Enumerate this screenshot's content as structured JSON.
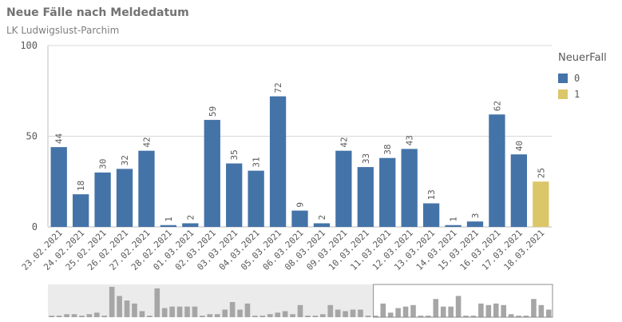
{
  "header": {
    "title": "Neue Fälle nach Meldedatum",
    "subtitle": "LK Ludwigslust-Parchim"
  },
  "legend": {
    "title": "NeuerFall",
    "items": [
      {
        "label": "0",
        "color": "#4473a8"
      },
      {
        "label": "1",
        "color": "#dbc769"
      }
    ]
  },
  "chart_data": {
    "type": "bar",
    "title": "Neue Fälle nach Meldedatum",
    "subtitle": "LK Ludwigslust-Parchim",
    "xlabel": "",
    "ylabel": "",
    "ylim": [
      0,
      100
    ],
    "yticks": [
      0,
      50,
      100
    ],
    "grid": true,
    "legend_position": "right",
    "categories": [
      "23.02.2021",
      "24.02.2021",
      "25.02.2021",
      "26.02.2021",
      "27.02.2021",
      "28.02.2021",
      "01.03.2021",
      "02.03.2021",
      "03.03.2021",
      "04.03.2021",
      "05.03.2021",
      "06.03.2021",
      "08.03.2021",
      "09.03.2021",
      "10.03.2021",
      "11.03.2021",
      "12.03.2021",
      "13.03.2021",
      "14.03.2021",
      "15.03.2021",
      "16.03.2021",
      "17.03.2021",
      "18.03.2021"
    ],
    "values": [
      44,
      18,
      30,
      32,
      42,
      1,
      2,
      59,
      35,
      31,
      72,
      9,
      2,
      42,
      33,
      38,
      43,
      13,
      1,
      3,
      62,
      40,
      25
    ],
    "neuer_fall": [
      0,
      0,
      0,
      0,
      0,
      0,
      0,
      0,
      0,
      0,
      0,
      0,
      0,
      0,
      0,
      0,
      0,
      0,
      0,
      0,
      0,
      0,
      1
    ],
    "series_colors": {
      "0": "#4473a8",
      "1": "#dbc769"
    }
  },
  "mini_chart": {
    "values": [
      1,
      1,
      2,
      2,
      1,
      2,
      3,
      1,
      20,
      14,
      11,
      9,
      4,
      1,
      19,
      6,
      7,
      7,
      7,
      7,
      1,
      2,
      2,
      5,
      10,
      5,
      9,
      1,
      1,
      2,
      3,
      4,
      2,
      8,
      1,
      1,
      2,
      8,
      5,
      4,
      5,
      5,
      1,
      1,
      9,
      3,
      6,
      7,
      8,
      1,
      1,
      12,
      7,
      7,
      14,
      1,
      1,
      9,
      8,
      9,
      8,
      2,
      1,
      1,
      12,
      8,
      5
    ],
    "bar_color": "#a6a6a6",
    "selected_fraction_start": 0.645
  }
}
